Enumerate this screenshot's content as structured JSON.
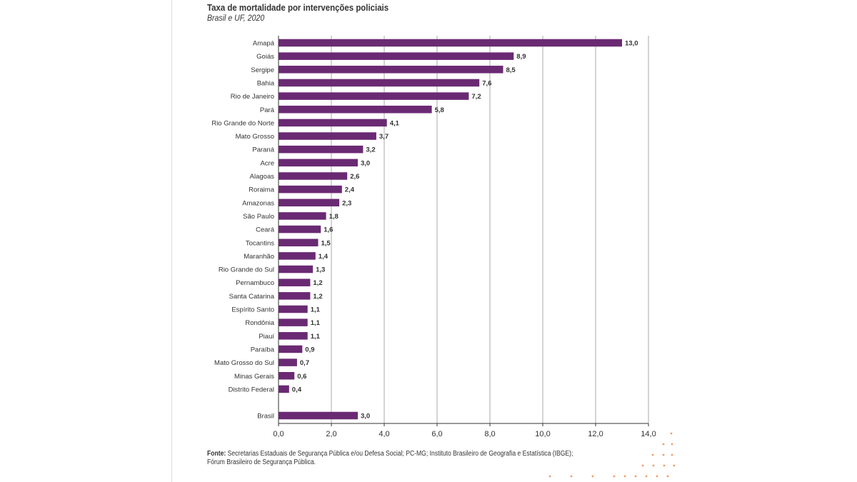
{
  "header": {
    "title": "Taxa de mortalidade por intervenções policiais",
    "subtitle": "Brasil e UF, 2020"
  },
  "source": {
    "label": "Fonte:",
    "line1": "Secretarias Estaduais de Segurança Pública e/ou Defesa Social; PC-MG; Instituto Brasileiro de Geografia e Estatística (IBGE);",
    "line2": "Fórum Brasileiro de Segurança Pública."
  },
  "colors": {
    "bar": "#6a2a73",
    "grid": "#aaaaaa",
    "axis": "#333333",
    "accent_dots": "#f08a4b"
  },
  "chart_data": {
    "type": "bar",
    "orientation": "horizontal",
    "title": "Taxa de mortalidade por intervenções policiais",
    "subtitle": "Brasil e UF, 2020",
    "xlim": [
      0,
      14
    ],
    "xticks": [
      "0,0",
      "2,0",
      "4,0",
      "6,0",
      "8,0",
      "10,0",
      "12,0",
      "14,0"
    ],
    "grid": "vertical",
    "categories": [
      "Amapá",
      "Goiás",
      "Sergipe",
      "Bahia",
      "Rio de Janeiro",
      "Pará",
      "Rio Grande do Norte",
      "Mato Grosso",
      "Paraná",
      "Acre",
      "Alagoas",
      "Roraima",
      "Amazonas",
      "São Paulo",
      "Ceará",
      "Tocantins",
      "Maranhão",
      "Rio Grande do Sul",
      "Pernambuco",
      "Santa Catarina",
      "Espírito Santo",
      "Rondônia",
      "Piauí",
      "Paraíba",
      "Mato Grosso do Sul",
      "Minas Gerais",
      "Distrito Federal",
      "Brasil"
    ],
    "values": [
      13.0,
      8.9,
      8.5,
      7.6,
      7.2,
      5.8,
      4.1,
      3.7,
      3.2,
      3.0,
      2.6,
      2.4,
      2.3,
      1.8,
      1.6,
      1.5,
      1.4,
      1.3,
      1.2,
      1.2,
      1.1,
      1.1,
      1.1,
      0.9,
      0.7,
      0.6,
      0.4,
      3.0
    ],
    "value_labels": [
      "13,0",
      "8,9",
      "8,5",
      "7,6",
      "7,2",
      "5,8",
      "4,1",
      "3,7",
      "3,2",
      "3,0",
      "2,6",
      "2,4",
      "2,3",
      "1,8",
      "1,6",
      "1,5",
      "1,4",
      "1,3",
      "1,2",
      "1,2",
      "1,1",
      "1,1",
      "1,1",
      "0,9",
      "0,7",
      "0,6",
      "0,4",
      "3,0"
    ]
  }
}
